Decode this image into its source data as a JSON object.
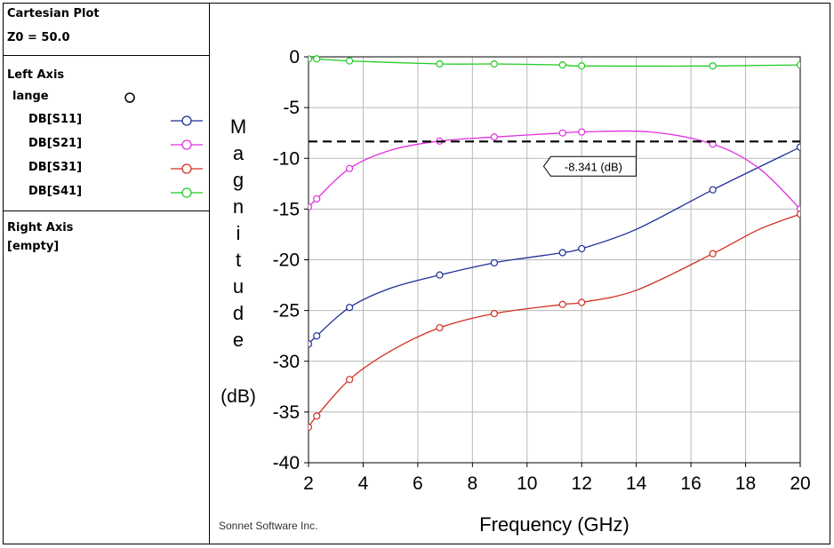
{
  "panel": {
    "title": "Cartesian Plot",
    "z0": "Z0 = 50.0",
    "left_axis_heading": "Left Axis",
    "group_name": "lange",
    "right_axis_heading": "Right Axis",
    "right_axis_value": "[empty]"
  },
  "legend": [
    {
      "label": "DB[S11]",
      "color": "#1f2f99"
    },
    {
      "label": "DB[S21]",
      "color": "#e030e0"
    },
    {
      "label": "DB[S31]",
      "color": "#d03020"
    },
    {
      "label": "DB[S41]",
      "color": "#22cc22"
    }
  ],
  "footer": "Sonnet Software Inc.",
  "chart_data": {
    "type": "line",
    "xlabel": "Frequency (GHz)",
    "ylabel_letters": [
      "M",
      "a",
      "g",
      "n",
      "i",
      "t",
      "u",
      "d",
      "e"
    ],
    "ylabel_unit": "(dB)",
    "xlim": [
      2,
      20
    ],
    "ylim": [
      -40,
      0
    ],
    "xticks": [
      2,
      4,
      6,
      8,
      10,
      12,
      14,
      16,
      18,
      20
    ],
    "yticks": [
      0,
      -5,
      -10,
      -15,
      -20,
      -25,
      -30,
      -35,
      -40
    ],
    "grid": true,
    "threshold": {
      "value": -8.341,
      "label": "-8.341 (dB)",
      "label_x": 12.3
    },
    "series": [
      {
        "name": "DB[S11]",
        "color": "#1f2f99",
        "x": [
          2.0,
          2.3,
          3.5,
          5.0,
          6.8,
          8.8,
          10.0,
          11.3,
          12.0,
          14.0,
          16.8,
          20.0
        ],
        "y": [
          -28.3,
          -27.5,
          -24.7,
          -22.8,
          -21.5,
          -20.3,
          -19.8,
          -19.3,
          -18.9,
          -17.0,
          -13.1,
          -8.9
        ],
        "markers_x": [
          2.0,
          2.3,
          3.5,
          6.8,
          8.8,
          11.3,
          12.0,
          16.8,
          20.0
        ],
        "markers_y": [
          -28.3,
          -27.5,
          -24.7,
          -21.5,
          -20.3,
          -19.3,
          -18.9,
          -13.1,
          -8.9
        ]
      },
      {
        "name": "DB[S21]",
        "color": "#e030e0",
        "x": [
          2.0,
          2.3,
          3.5,
          5.0,
          6.8,
          8.8,
          11.3,
          12.0,
          14.5,
          16.8,
          18.5,
          20.0
        ],
        "y": [
          -14.8,
          -14.0,
          -11.0,
          -9.2,
          -8.3,
          -7.9,
          -7.5,
          -7.4,
          -7.4,
          -8.6,
          -11.0,
          -15.0
        ],
        "markers_x": [
          2.0,
          2.3,
          3.5,
          6.8,
          8.8,
          11.3,
          12.0,
          16.8,
          20.0
        ],
        "markers_y": [
          -14.8,
          -14.0,
          -11.0,
          -8.3,
          -7.9,
          -7.5,
          -7.4,
          -8.6,
          -15.0
        ]
      },
      {
        "name": "DB[S31]",
        "color": "#d03020",
        "x": [
          2.0,
          2.3,
          3.5,
          5.0,
          6.8,
          8.8,
          11.3,
          12.0,
          14.0,
          16.8,
          18.5,
          20.0
        ],
        "y": [
          -36.5,
          -35.4,
          -31.8,
          -29.0,
          -26.7,
          -25.3,
          -24.4,
          -24.2,
          -23.0,
          -19.4,
          -17.0,
          -15.5
        ],
        "markers_x": [
          2.0,
          2.3,
          3.5,
          6.8,
          8.8,
          11.3,
          12.0,
          16.8,
          20.0
        ],
        "markers_y": [
          -36.5,
          -35.4,
          -31.8,
          -26.7,
          -25.3,
          -24.4,
          -24.2,
          -19.4,
          -15.5
        ]
      },
      {
        "name": "DB[S41]",
        "color": "#22cc22",
        "x": [
          2.0,
          2.3,
          3.5,
          6.8,
          8.8,
          11.3,
          12.0,
          16.8,
          20.0
        ],
        "y": [
          -0.2,
          -0.2,
          -0.4,
          -0.7,
          -0.7,
          -0.8,
          -0.9,
          -0.9,
          -0.8
        ],
        "markers_x": [
          2.0,
          2.3,
          3.5,
          6.8,
          8.8,
          11.3,
          12.0,
          16.8,
          20.0
        ],
        "markers_y": [
          -0.2,
          -0.2,
          -0.4,
          -0.7,
          -0.7,
          -0.8,
          -0.9,
          -0.9,
          -0.8
        ]
      }
    ]
  }
}
